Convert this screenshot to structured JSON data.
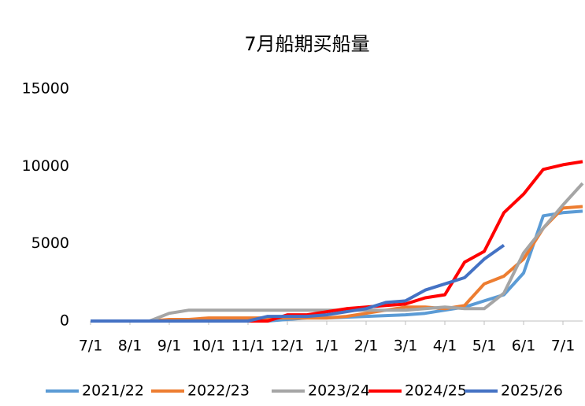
{
  "chart_data": {
    "type": "line",
    "title": "7月船期买船量",
    "categories": [
      "7/1",
      null,
      "8/1",
      null,
      "9/1",
      null,
      "10/1",
      null,
      "11/1",
      null,
      "12/1",
      null,
      "1/1",
      null,
      "2/1",
      null,
      "3/1",
      null,
      "4/1",
      null,
      "5/1",
      null,
      "6/1",
      null,
      "7/1",
      null
    ],
    "series": [
      {
        "name": "2021/22",
        "color": "#5b9bd5",
        "values": [
          0,
          0,
          0,
          0,
          0,
          0,
          0,
          0,
          0,
          0,
          100,
          200,
          200,
          250,
          300,
          350,
          400,
          500,
          700,
          900,
          1300,
          1700,
          3100,
          6800,
          7000,
          7100
        ]
      },
      {
        "name": "2022/23",
        "color": "#ed7d31",
        "values": [
          0,
          0,
          0,
          0,
          100,
          100,
          200,
          200,
          200,
          200,
          200,
          200,
          200,
          300,
          500,
          700,
          900,
          900,
          800,
          1000,
          2400,
          2900,
          4000,
          6000,
          7300,
          7400
        ]
      },
      {
        "name": "2023/24",
        "color": "#a5a5a5",
        "values": [
          0,
          0,
          0,
          0,
          500,
          700,
          700,
          700,
          700,
          700,
          700,
          700,
          700,
          700,
          700,
          700,
          700,
          800,
          900,
          800,
          800,
          1800,
          4400,
          6000,
          7500,
          8900
        ]
      },
      {
        "name": "2024/25",
        "color": "#ff0000",
        "values": [
          0,
          0,
          0,
          0,
          0,
          0,
          0,
          0,
          0,
          0,
          400,
          400,
          600,
          800,
          900,
          1000,
          1100,
          1500,
          1700,
          3800,
          4500,
          7000,
          8200,
          9800,
          10100,
          10300
        ]
      },
      {
        "name": "2025/26",
        "color": "#4472c4",
        "values": [
          0,
          0,
          0,
          0,
          0,
          0,
          0,
          0,
          0,
          300,
          300,
          300,
          400,
          600,
          800,
          1200,
          1300,
          2000,
          2400,
          2800,
          4000,
          4900,
          null,
          null,
          null,
          null
        ]
      }
    ],
    "ylim": [
      0,
      15000
    ],
    "yticks": [
      0,
      5000,
      10000,
      15000
    ],
    "grid": false,
    "legend": "bottom"
  }
}
